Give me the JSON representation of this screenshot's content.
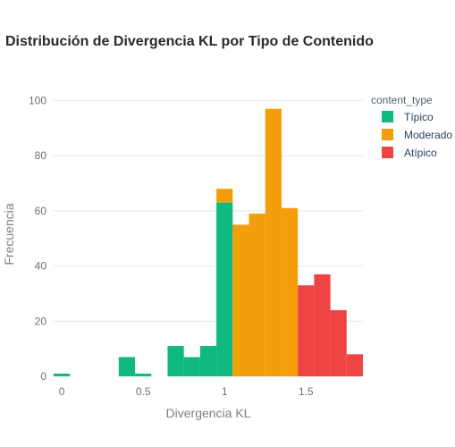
{
  "chart_data": {
    "type": "bar",
    "title": "Distribución de Divergencia KL por Tipo de Contenido",
    "xlabel": "Divergencia KL",
    "ylabel": "Frecuencia",
    "xlim": [
      -0.05,
      1.85
    ],
    "ylim": [
      0,
      105
    ],
    "x_ticks": [
      0,
      0.5,
      1,
      1.5
    ],
    "x_tick_labels": [
      "0",
      "0.5",
      "1",
      "1.5"
    ],
    "y_ticks": [
      0,
      20,
      40,
      60,
      80,
      100
    ],
    "y_tick_labels": [
      "0",
      "20",
      "40",
      "60",
      "80",
      "100"
    ],
    "grid": true,
    "barmode": "stacked histogram",
    "bin_width": 0.1,
    "legend": {
      "title": "content_type",
      "placement": "top-right"
    },
    "series": [
      {
        "name": "Típico",
        "color": "#10b981",
        "bins": [
          {
            "x0": -0.05,
            "x1": 0.05,
            "count": 1
          },
          {
            "x0": 0.35,
            "x1": 0.45,
            "count": 7
          },
          {
            "x0": 0.45,
            "x1": 0.55,
            "count": 1
          },
          {
            "x0": 0.65,
            "x1": 0.75,
            "count": 11
          },
          {
            "x0": 0.75,
            "x1": 0.85,
            "count": 7
          },
          {
            "x0": 0.85,
            "x1": 0.95,
            "count": 11
          },
          {
            "x0": 0.95,
            "x1": 1.05,
            "count": 63
          }
        ]
      },
      {
        "name": "Moderado",
        "color": "#f59e0b",
        "bins": [
          {
            "x0": 0.95,
            "x1": 1.05,
            "count": 5
          },
          {
            "x0": 1.05,
            "x1": 1.15,
            "count": 55
          },
          {
            "x0": 1.15,
            "x1": 1.25,
            "count": 59
          },
          {
            "x0": 1.25,
            "x1": 1.35,
            "count": 97
          },
          {
            "x0": 1.35,
            "x1": 1.45,
            "count": 61
          }
        ]
      },
      {
        "name": "Atípico",
        "color": "#ef4444",
        "bins": [
          {
            "x0": 1.45,
            "x1": 1.55,
            "count": 33
          },
          {
            "x0": 1.55,
            "x1": 1.65,
            "count": 37
          },
          {
            "x0": 1.65,
            "x1": 1.75,
            "count": 24
          },
          {
            "x0": 1.75,
            "x1": 1.85,
            "count": 8
          }
        ]
      }
    ]
  }
}
